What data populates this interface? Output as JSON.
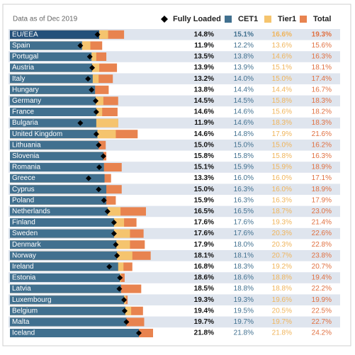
{
  "chart_data": {
    "type": "bar",
    "orientation": "horizontal",
    "title": "Data as of Dec 2019",
    "categories": [
      "EU/EEA",
      "Spain",
      "Portugal",
      "Austria",
      "Italy",
      "Hungary",
      "Germany",
      "France",
      "Bulgaria",
      "United Kingdom",
      "Lithuania",
      "Slovenia",
      "Romania",
      "Greece",
      "Cyprus",
      "Poland",
      "Netherlands",
      "Finland",
      "Sweden",
      "Denmark",
      "Norway",
      "Ireland",
      "Estonia",
      "Latvia",
      "Luxembourg",
      "Belgium",
      "Malta",
      "Iceland"
    ],
    "series": [
      {
        "name": "Fully Loaded",
        "color": "#000000",
        "marker": "diamond",
        "values": [
          14.8,
          11.9,
          13.5,
          13.9,
          13.2,
          13.8,
          14.5,
          14.6,
          11.9,
          14.6,
          15.0,
          15.8,
          15.1,
          13.3,
          15.0,
          15.9,
          16.5,
          17.6,
          17.6,
          17.9,
          18.1,
          16.8,
          18.6,
          18.5,
          19.3,
          19.4,
          19.7,
          21.8
        ],
        "value_labels": [
          "14.8%",
          "11.9%",
          "13.5%",
          "13.9%",
          "13.2%",
          "13.8%",
          "14.5%",
          "14.6%",
          "11.9%",
          "14.6%",
          "15.0%",
          "15.8%",
          "15.1%",
          "13.3%",
          "15.0%",
          "15.9%",
          "16.5%",
          "17.6%",
          "17.6%",
          "17.9%",
          "18.1%",
          "16.8%",
          "18.6%",
          "18.5%",
          "19.3%",
          "19.4%",
          "19.7%",
          "21.8%"
        ]
      },
      {
        "name": "CET1",
        "color": "#41708f",
        "values": [
          15.1,
          12.2,
          13.8,
          13.9,
          14.0,
          14.4,
          14.5,
          14.6,
          14.6,
          14.8,
          15.0,
          15.8,
          15.9,
          16.0,
          16.3,
          16.3,
          16.5,
          17.6,
          17.6,
          18.0,
          18.1,
          18.3,
          18.6,
          18.8,
          19.3,
          19.5,
          19.7,
          21.8
        ],
        "value_labels": [
          "15.1%",
          "12.2%",
          "13.8%",
          "13.9%",
          "14.0%",
          "14.4%",
          "14.5%",
          "14.6%",
          "14.6%",
          "14.8%",
          "15.0%",
          "15.8%",
          "15.9%",
          "16.0%",
          "16.3%",
          "16.3%",
          "16.5%",
          "17.6%",
          "17.6%",
          "18.0%",
          "18.1%",
          "18.3%",
          "18.6%",
          "18.8%",
          "19.3%",
          "19.5%",
          "19.7%",
          "21.8%"
        ]
      },
      {
        "name": "Tier1",
        "color": "#f5c46e",
        "values": [
          16.6,
          13.6,
          14.6,
          15.1,
          15.0,
          14.4,
          15.8,
          15.6,
          18.3,
          17.9,
          15.0,
          15.8,
          15.9,
          16.0,
          16.0,
          16.3,
          18.7,
          19.3,
          20.3,
          20.3,
          20.7,
          19.2,
          18.8,
          18.8,
          19.6,
          20.5,
          19.7,
          21.8
        ],
        "value_labels": [
          "16.6%",
          "13.6%",
          "14.6%",
          "15.1%",
          "15.0%",
          "14.4%",
          "15.8%",
          "15.6%",
          "18.3%",
          "17.9%",
          "15.0%",
          "15.8%",
          "15.9%",
          "16.0%",
          "16.0%",
          "16.3%",
          "18.7%",
          "19.3%",
          "20.3%",
          "20.3%",
          "20.7%",
          "19.2%",
          "18.8%",
          "18.8%",
          "19.6%",
          "20.5%",
          "19.7%",
          "21.8%"
        ]
      },
      {
        "name": "Total",
        "color": "#e8834f",
        "values": [
          19.3,
          15.6,
          16.3,
          18.1,
          17.4,
          16.7,
          18.3,
          18.2,
          18.3,
          21.6,
          16.2,
          16.3,
          18.9,
          17.1,
          18.9,
          17.9,
          23.0,
          21.4,
          22.6,
          22.8,
          23.8,
          20.7,
          19.4,
          22.2,
          19.9,
          22.5,
          22.7,
          24.2
        ],
        "value_labels": [
          "19.3%",
          "15.6%",
          "16.3%",
          "18.1%",
          "17.4%",
          "16.7%",
          "18.3%",
          "18.2%",
          "18.3%",
          "21.6%",
          "16.2%",
          "16.3%",
          "18.9%",
          "17.1%",
          "18.9%",
          "17.9%",
          "23.0%",
          "21.4%",
          "22.6%",
          "22.8%",
          "23.8%",
          "20.7%",
          "19.4%",
          "22.2%",
          "19.9%",
          "22.5%",
          "22.7%",
          "24.2%"
        ]
      }
    ]
  }
}
